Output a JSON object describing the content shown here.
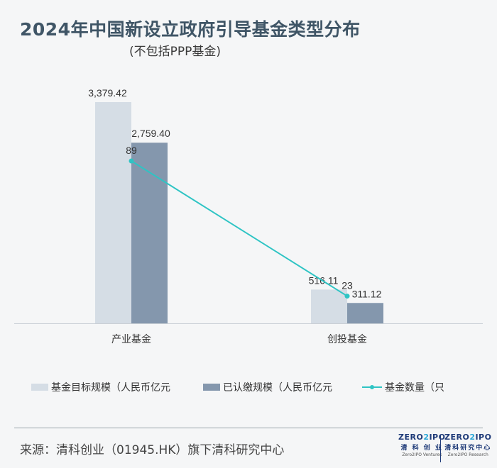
{
  "title": "2024年中国新设立政府引导基金类型分布",
  "subtitle": "(不包括PPP基金)",
  "chart_data": {
    "type": "bar",
    "categories": [
      "产业基金",
      "创投基金"
    ],
    "series": [
      {
        "name": "基金目标规模（人民币亿元",
        "kind": "bar",
        "values": [
          3379.42,
          516.11
        ],
        "labels": [
          "3,379.42",
          "516.11"
        ],
        "color": "#d5dde5"
      },
      {
        "name": "已认缴规模（人民币亿元",
        "kind": "bar",
        "values": [
          2759.4,
          311.12
        ],
        "labels": [
          "2,759.40",
          "311.12"
        ],
        "color": "#8497ad"
      },
      {
        "name": "基金数量（只",
        "kind": "line",
        "values": [
          89,
          23
        ],
        "labels": [
          "89",
          "23"
        ],
        "color": "#2ec4c4"
      }
    ],
    "legend_position": "bottom",
    "grid": false
  },
  "source": "来源：清科创业（01945.HK）旗下清科研究中心",
  "logos": [
    {
      "brand_left": "ZERO",
      "brand_mid": "2",
      "brand_right": "IPO",
      "cn": "清 科 创 业",
      "en": "Zero2IPO Ventures"
    },
    {
      "brand_left": "ZERO",
      "brand_mid": "2",
      "brand_right": "IPO",
      "cn": "清科研究中心",
      "en": "Zero2IPO Research"
    }
  ]
}
